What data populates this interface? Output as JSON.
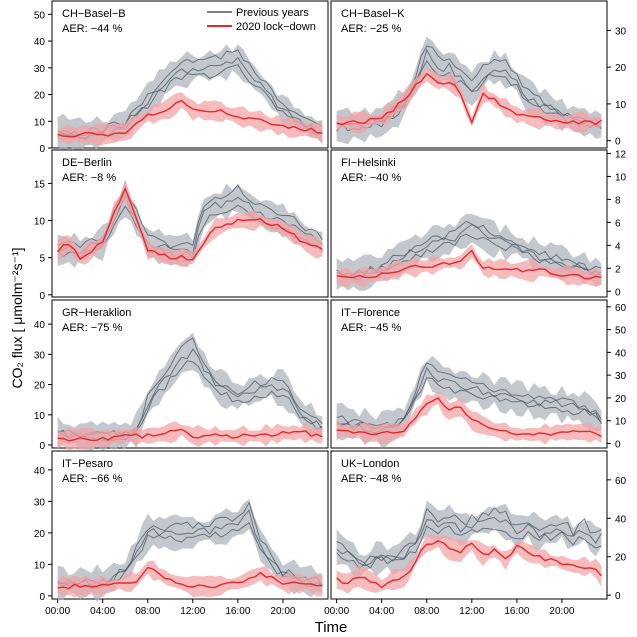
{
  "figure": {
    "ylabel": "CO₂ flux [ μmolm⁻²s⁻¹]",
    "xlabel": "Time",
    "x_ticks": [
      "00:00",
      "04:00",
      "08:00",
      "12:00",
      "16:00",
      "20:00"
    ],
    "legend": {
      "previous": "Previous years",
      "lockdown": "2020 lock−down"
    },
    "colors": {
      "previous": "#4a5560",
      "previous_band": "#a9b1b9",
      "lockdown": "#e8272e",
      "lockdown_band": "#f2a4a7"
    }
  },
  "chart_data": [
    {
      "type": "line",
      "title": "CH−Basel−B",
      "aer": "AER: −44 %",
      "axis_side": "left",
      "ylim": [
        0,
        55
      ],
      "yticks": [
        0,
        10,
        20,
        30,
        40,
        50
      ],
      "series": [
        {
          "name": "Previous years",
          "x": [
            0,
            2,
            4,
            6,
            8,
            10,
            12,
            14,
            16,
            18,
            20,
            22,
            23.5
          ],
          "y": [
            6,
            5,
            6,
            9,
            18,
            27,
            30,
            31,
            33,
            24,
            14,
            9,
            6
          ]
        },
        {
          "name": "2020 lock−down",
          "x": [
            0,
            2,
            4,
            6,
            8,
            10,
            11,
            12,
            14,
            16,
            18,
            20,
            22,
            23.5
          ],
          "y": [
            5,
            5,
            5,
            6,
            12,
            15,
            18,
            14,
            14,
            12,
            10,
            8,
            7,
            6
          ]
        }
      ]
    },
    {
      "type": "line",
      "title": "CH−Basel−K",
      "aer": "AER: −25 %",
      "axis_side": "right",
      "ylim": [
        -2,
        38
      ],
      "yticks": [
        0,
        10,
        20,
        30
      ],
      "series": [
        {
          "name": "Previous years",
          "x": [
            0,
            2,
            4,
            6,
            7,
            8,
            9,
            10,
            11,
            12,
            13,
            14,
            15,
            16,
            17,
            18,
            20,
            22,
            23.5
          ],
          "y": [
            4,
            4,
            5,
            10,
            16,
            24,
            20,
            20,
            17,
            14,
            18,
            20,
            19,
            16,
            12,
            10,
            7,
            5,
            4
          ]
        },
        {
          "name": "2020 lock−down",
          "x": [
            0,
            2,
            4,
            6,
            7,
            8,
            9,
            10,
            11,
            12,
            13,
            14,
            16,
            18,
            20,
            22,
            23.5
          ],
          "y": [
            5,
            5,
            6,
            11,
            15,
            18,
            16,
            16,
            13,
            5,
            13,
            11,
            7,
            6,
            5,
            5,
            5
          ]
        }
      ]
    },
    {
      "type": "line",
      "title": "DE−Berlin",
      "aer": "AER: −8 %",
      "axis_side": "left",
      "ylim": [
        -0.3,
        19.5
      ],
      "yticks": [
        0,
        5,
        10,
        15
      ],
      "series": [
        {
          "name": "Previous years",
          "x": [
            0,
            2,
            4,
            5,
            6,
            7,
            8,
            10,
            12,
            13,
            14,
            16,
            18,
            20,
            22,
            23.5
          ],
          "y": [
            6,
            6,
            7,
            10,
            13,
            10,
            7,
            6,
            6,
            11,
            12,
            13,
            11,
            10,
            8,
            7
          ]
        },
        {
          "name": "2020 lock−down",
          "x": [
            0,
            1,
            2,
            4,
            5,
            6,
            7,
            8,
            10,
            12,
            13,
            14,
            16,
            18,
            20,
            22,
            23.5
          ],
          "y": [
            6,
            7,
            5,
            7,
            11,
            14,
            10,
            6,
            5,
            5,
            7,
            9,
            10,
            10,
            9,
            7,
            6
          ]
        }
      ]
    },
    {
      "type": "line",
      "title": "FI−Helsinki",
      "aer": "AER: −40 %",
      "axis_side": "right",
      "ylim": [
        -0.5,
        12.3
      ],
      "yticks": [
        0,
        2,
        4,
        6,
        8,
        10,
        12
      ],
      "series": [
        {
          "name": "Previous years",
          "x": [
            0,
            2,
            4,
            6,
            8,
            10,
            12,
            13,
            14,
            16,
            18,
            20,
            22,
            23.5
          ],
          "y": [
            1.5,
            1.5,
            2,
            3,
            4,
            4.5,
            5.5,
            5,
            4.5,
            4,
            3,
            2.5,
            2,
            1.5
          ]
        },
        {
          "name": "2020 lock−down",
          "x": [
            0,
            2,
            4,
            6,
            8,
            10,
            11,
            12,
            13,
            14,
            16,
            18,
            20,
            22,
            23.5
          ],
          "y": [
            1.2,
            1.2,
            1.5,
            2,
            2.2,
            2.5,
            2.5,
            3.5,
            2,
            2,
            1.8,
            1.8,
            1.5,
            1.2,
            1.2
          ]
        }
      ]
    },
    {
      "type": "line",
      "title": "GR−Heraklion",
      "aer": "AER: −75 %",
      "axis_side": "left",
      "ylim": [
        -1,
        48
      ],
      "yticks": [
        0,
        10,
        20,
        30,
        40
      ],
      "series": [
        {
          "name": "Previous years",
          "x": [
            0,
            2,
            4,
            6,
            7,
            8,
            10,
            11,
            12,
            13,
            14,
            16,
            18,
            20,
            22,
            23.5
          ],
          "y": [
            4,
            3,
            3,
            3,
            5,
            14,
            24,
            29,
            31,
            25,
            20,
            16,
            19,
            19,
            9,
            6
          ]
        },
        {
          "name": "2020 lock−down",
          "x": [
            0,
            2,
            4,
            6,
            8,
            10,
            11,
            12,
            14,
            16,
            18,
            20,
            22,
            23.5
          ],
          "y": [
            2,
            2,
            2,
            3,
            3,
            4,
            5,
            3,
            3,
            3,
            3,
            4,
            4,
            3
          ]
        }
      ]
    },
    {
      "type": "line",
      "title": "IT−Florence",
      "aer": "AER: −45 %",
      "axis_side": "right",
      "ylim": [
        -2,
        63
      ],
      "yticks": [
        0,
        10,
        20,
        30,
        40,
        50,
        60
      ],
      "series": [
        {
          "name": "Previous years",
          "x": [
            0,
            2,
            4,
            6,
            7,
            8,
            10,
            12,
            14,
            16,
            18,
            20,
            22,
            23.5
          ],
          "y": [
            10,
            8,
            6,
            10,
            22,
            32,
            26,
            24,
            22,
            20,
            18,
            17,
            15,
            10
          ]
        },
        {
          "name": "2020 lock−down",
          "x": [
            0,
            2,
            4,
            6,
            7,
            8,
            9,
            10,
            11,
            12,
            14,
            16,
            18,
            20,
            22,
            23.5
          ],
          "y": [
            6,
            5,
            4,
            6,
            12,
            17,
            20,
            14,
            16,
            10,
            6,
            4,
            4,
            5,
            5,
            4
          ]
        }
      ]
    },
    {
      "type": "line",
      "title": "IT−Pesaro",
      "aer": "AER: −66 %",
      "axis_side": "left",
      "ylim": [
        -1,
        46
      ],
      "yticks": [
        0,
        10,
        20,
        30,
        40
      ],
      "series": [
        {
          "name": "Previous years",
          "x": [
            0,
            2,
            4,
            6,
            8,
            10,
            12,
            14,
            16,
            17,
            18,
            20,
            22,
            23.5
          ],
          "y": [
            4,
            4,
            4,
            8,
            20,
            20,
            20,
            21,
            23,
            26,
            16,
            7,
            5,
            4
          ]
        },
        {
          "name": "2020 lock−down",
          "x": [
            0,
            2,
            4,
            6,
            7,
            8,
            10,
            12,
            14,
            16,
            18,
            20,
            22,
            23.5
          ],
          "y": [
            3,
            3,
            3,
            4,
            5,
            9,
            5,
            3,
            3,
            4,
            7,
            4,
            4,
            3
          ]
        }
      ]
    },
    {
      "type": "line",
      "title": "UK−London",
      "aer": "AER: −48 %",
      "axis_side": "right",
      "ylim": [
        -2,
        75
      ],
      "yticks": [
        0,
        20,
        40,
        60
      ],
      "series": [
        {
          "name": "Previous years",
          "x": [
            0,
            1,
            2,
            3,
            4,
            5,
            6,
            7,
            8,
            9,
            10,
            11,
            12,
            13,
            14,
            15,
            16,
            17,
            18,
            19,
            20,
            21,
            22,
            23,
            23.5
          ],
          "y": [
            25,
            22,
            15,
            18,
            20,
            18,
            21,
            25,
            40,
            36,
            38,
            34,
            36,
            38,
            40,
            38,
            33,
            36,
            32,
            34,
            35,
            30,
            34,
            28,
            30
          ]
        },
        {
          "name": "2020 lock−down",
          "x": [
            0,
            1,
            2,
            3,
            4,
            5,
            6,
            7,
            8,
            9,
            10,
            11,
            12,
            13,
            14,
            15,
            16,
            17,
            18,
            19,
            20,
            21,
            22,
            23,
            23.5
          ],
          "y": [
            8,
            6,
            10,
            7,
            5,
            8,
            9,
            18,
            27,
            28,
            24,
            23,
            26,
            21,
            23,
            18,
            25,
            22,
            20,
            18,
            17,
            15,
            15,
            14,
            10
          ]
        }
      ]
    }
  ]
}
